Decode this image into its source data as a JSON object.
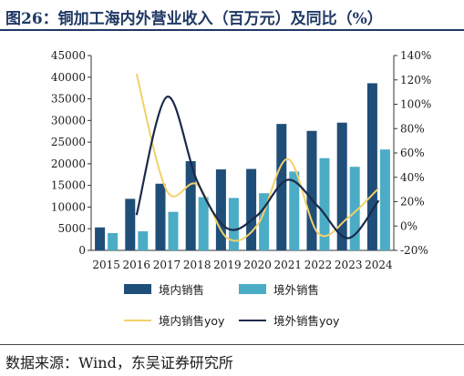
{
  "title": "图26：铜加工海内外营业收入（百万元）及同比（%）",
  "source": "数据来源：Wind，东吴证券研究所",
  "chart_data": {
    "type": "bar",
    "title": "图26：铜加工海内外营业收入（百万元）及同比（%）",
    "categories": [
      "2015",
      "2016",
      "2017",
      "2018",
      "2019",
      "2020",
      "2021",
      "2022",
      "2023",
      "2024"
    ],
    "ylim": [
      0,
      45000
    ],
    "yticks": [
      "0",
      "5000",
      "10000",
      "15000",
      "20000",
      "25000",
      "30000",
      "35000",
      "40000",
      "45000"
    ],
    "y2lim": [
      -20,
      140
    ],
    "y2ticks": [
      "-20%",
      "0%",
      "20%",
      "40%",
      "60%",
      "80%",
      "100%",
      "120%",
      "140%"
    ],
    "series": [
      {
        "name": "境内销售",
        "kind": "bar",
        "axis": "left",
        "color": "#1f4e79",
        "values": [
          5300,
          11900,
          15400,
          20600,
          18700,
          18800,
          29200,
          27600,
          29500,
          38600
        ]
      },
      {
        "name": "境外销售",
        "kind": "bar",
        "axis": "left",
        "color": "#4bacc6",
        "values": [
          4000,
          4400,
          8900,
          12300,
          12100,
          13200,
          18200,
          21300,
          19300,
          23300
        ]
      },
      {
        "name": "境内销售yoy",
        "kind": "line",
        "axis": "right",
        "color": "#f2d06b",
        "values": [
          null,
          125,
          29,
          34,
          -10,
          1,
          55,
          -6,
          7,
          31
        ]
      },
      {
        "name": "境外销售yoy",
        "kind": "line",
        "axis": "right",
        "color": "#1b2a4a",
        "values": [
          null,
          9,
          106,
          37,
          -2,
          9,
          38,
          16,
          -10,
          21
        ]
      }
    ],
    "legend": "bottom",
    "grid": false
  }
}
